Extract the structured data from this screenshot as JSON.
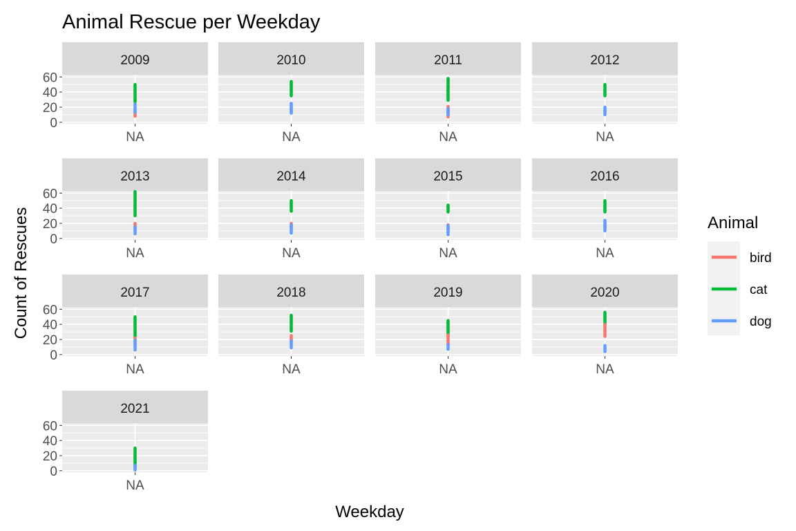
{
  "chart_data": {
    "type": "line",
    "title": "Animal Rescue per Weekday",
    "xlabel": "Weekday",
    "ylabel": "Count of Rescues",
    "facet_by": "year",
    "categories": [
      "NA"
    ],
    "y_ticks": [
      0,
      20,
      40,
      60
    ],
    "ylim": [
      -2,
      63
    ],
    "grid": true,
    "legend": {
      "title": "Animal",
      "position": "right",
      "entries": [
        {
          "name": "bird",
          "color": "#F8766D"
        },
        {
          "name": "cat",
          "color": "#00BA38"
        },
        {
          "name": "dog",
          "color": "#619CFF"
        }
      ]
    },
    "panels": [
      {
        "year": "2009",
        "series": [
          {
            "name": "bird",
            "range": [
              8,
              13
            ]
          },
          {
            "name": "cat",
            "range": [
              27,
              50
            ]
          },
          {
            "name": "dog",
            "range": [
              13,
              24
            ]
          }
        ]
      },
      {
        "year": "2010",
        "series": [
          {
            "name": "bird",
            "range": [
              13,
              16
            ]
          },
          {
            "name": "cat",
            "range": [
              35,
              54
            ]
          },
          {
            "name": "dog",
            "range": [
              12,
              25
            ]
          }
        ]
      },
      {
        "year": "2011",
        "series": [
          {
            "name": "bird",
            "range": [
              7,
              21
            ]
          },
          {
            "name": "cat",
            "range": [
              29,
              58
            ]
          },
          {
            "name": "dog",
            "range": [
              10,
              18
            ]
          }
        ]
      },
      {
        "year": "2012",
        "series": [
          {
            "name": "bird",
            "range": [
              12,
              15
            ]
          },
          {
            "name": "cat",
            "range": [
              35,
              50
            ]
          },
          {
            "name": "dog",
            "range": [
              10,
              20
            ]
          }
        ]
      },
      {
        "year": "2013",
        "series": [
          {
            "name": "bird",
            "range": [
              13,
              20
            ]
          },
          {
            "name": "cat",
            "range": [
              30,
              62
            ]
          },
          {
            "name": "dog",
            "range": [
              6,
              15
            ]
          }
        ]
      },
      {
        "year": "2014",
        "series": [
          {
            "name": "bird",
            "range": [
              13,
              20
            ]
          },
          {
            "name": "cat",
            "range": [
              36,
              50
            ]
          },
          {
            "name": "dog",
            "range": [
              7,
              18
            ]
          }
        ]
      },
      {
        "year": "2015",
        "series": [
          {
            "name": "bird",
            "range": [
              12,
              18
            ]
          },
          {
            "name": "cat",
            "range": [
              35,
              44
            ]
          },
          {
            "name": "dog",
            "range": [
              5,
              17
            ]
          }
        ]
      },
      {
        "year": "2016",
        "series": [
          {
            "name": "bird",
            "range": [
              12,
              16
            ]
          },
          {
            "name": "cat",
            "range": [
              35,
              50
            ]
          },
          {
            "name": "dog",
            "range": [
              10,
              24
            ]
          }
        ]
      },
      {
        "year": "2017",
        "series": [
          {
            "name": "bird",
            "range": [
              15,
              22
            ]
          },
          {
            "name": "cat",
            "range": [
              24,
              50
            ]
          },
          {
            "name": "dog",
            "range": [
              6,
              19
            ]
          }
        ]
      },
      {
        "year": "2018",
        "series": [
          {
            "name": "bird",
            "range": [
              17,
              25
            ]
          },
          {
            "name": "cat",
            "range": [
              31,
              52
            ]
          },
          {
            "name": "dog",
            "range": [
              9,
              18
            ]
          }
        ]
      },
      {
        "year": "2019",
        "series": [
          {
            "name": "bird",
            "range": [
              13,
              26
            ]
          },
          {
            "name": "cat",
            "range": [
              26,
              45
            ]
          },
          {
            "name": "dog",
            "range": [
              7,
              13
            ]
          }
        ]
      },
      {
        "year": "2020",
        "series": [
          {
            "name": "bird",
            "range": [
              24,
              40
            ]
          },
          {
            "name": "cat",
            "range": [
              40,
              56
            ]
          },
          {
            "name": "dog",
            "range": [
              4,
              12
            ]
          }
        ]
      },
      {
        "year": "2021",
        "series": [
          {
            "name": "bird",
            "range": [
              5,
              7
            ]
          },
          {
            "name": "cat",
            "range": [
              7,
              30
            ]
          },
          {
            "name": "dog",
            "range": [
              1,
              7
            ]
          }
        ]
      }
    ]
  }
}
